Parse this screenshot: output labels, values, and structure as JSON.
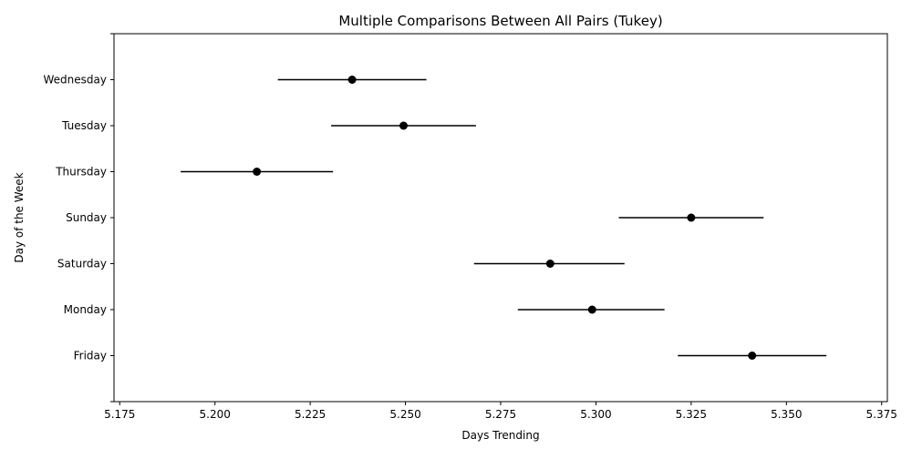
{
  "chart_data": {
    "type": "scatter",
    "title": "Multiple Comparisons Between All Pairs (Tukey)",
    "xlabel": "Days Trending",
    "ylabel": "Day of the Week",
    "xlim": [
      5.1735,
      5.3765
    ],
    "x_ticks": [
      "5.175",
      "5.200",
      "5.225",
      "5.250",
      "5.275",
      "5.300",
      "5.325",
      "5.350",
      "5.375"
    ],
    "x_tick_values": [
      5.175,
      5.2,
      5.225,
      5.25,
      5.275,
      5.3,
      5.325,
      5.35,
      5.375
    ],
    "categories": [
      "Friday",
      "Monday",
      "Saturday",
      "Sunday",
      "Thursday",
      "Tuesday",
      "Wednesday"
    ],
    "series": [
      {
        "means": [
          5.341,
          5.299,
          5.288,
          5.325,
          5.211,
          5.2495,
          5.236
        ],
        "lower": [
          5.3215,
          5.2795,
          5.268,
          5.306,
          5.191,
          5.2305,
          5.2165
        ],
        "upper": [
          5.3605,
          5.318,
          5.3075,
          5.344,
          5.231,
          5.2685,
          5.2555
        ]
      }
    ],
    "grid": false,
    "legend": "none",
    "colors": {
      "marker": "#000000",
      "line": "#000000",
      "frame": "#000000"
    }
  }
}
